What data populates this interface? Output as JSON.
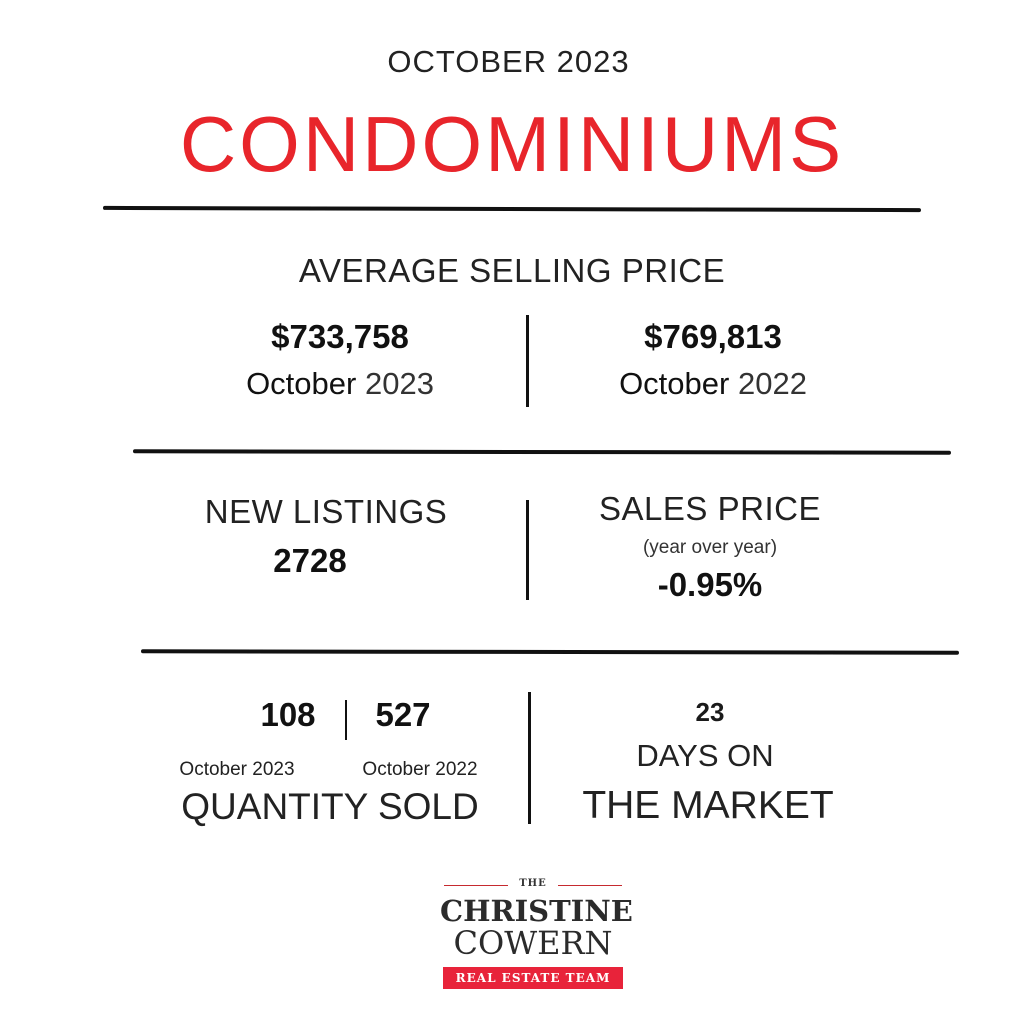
{
  "header": {
    "month_year": "OCTOBER  2023",
    "title": "CONDOMINIUMS"
  },
  "average_selling_price": {
    "label": "AVERAGE SELLING PRICE",
    "current": {
      "value": "$733,758",
      "month": "October",
      "year": "2023"
    },
    "previous": {
      "value": "$769,813",
      "month": "October",
      "year": "2022"
    }
  },
  "new_listings": {
    "label": "NEW LISTINGS",
    "value": "2728"
  },
  "sales_price": {
    "label": "SALES PRICE",
    "sub_label": "(year over year)",
    "value": "-0.95%"
  },
  "quantity_sold": {
    "current_value": "108",
    "previous_value": "527",
    "current_label": "October 2023",
    "previous_label": "October 2022",
    "label": "QUANTITY SOLD"
  },
  "days_on_market": {
    "value": "23",
    "label_line1": "DAYS ON",
    "label_line2": "THE MARKET"
  },
  "logo": {
    "the": "THE",
    "name_line1": "CHRISTINE",
    "name_line2": "COWERN",
    "tagline": "REAL ESTATE TEAM"
  },
  "colors": {
    "accent_red": "#e8252b",
    "text": "#1a1a1a",
    "rule": "#111111"
  }
}
